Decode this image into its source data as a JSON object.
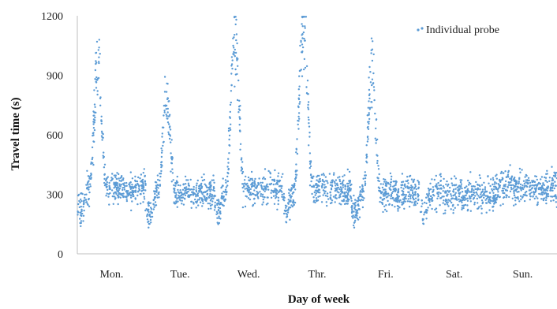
{
  "chart_data": {
    "type": "scatter",
    "title": "",
    "xlabel": "Day of week",
    "ylabel": "Travel time (s)",
    "ylim": [
      0,
      1200
    ],
    "yticks": [
      0,
      300,
      600,
      900,
      1200
    ],
    "categories": [
      "Mon.",
      "Tue.",
      "Wed.",
      "Thr.",
      "Fri.",
      "Sat.",
      "Sun."
    ],
    "xlim_days": [
      0,
      7
    ],
    "grid": false,
    "legend_position": "top-right",
    "series": [
      {
        "name": "Individual probe",
        "color": "#5b9bd5",
        "marker": "dot",
        "daily_profile": [
          {
            "day": "Mon.",
            "baseline": 330,
            "morning_low": 220,
            "peak": 940
          },
          {
            "day": "Tue.",
            "baseline": 310,
            "morning_low": 200,
            "peak": 780
          },
          {
            "day": "Wed.",
            "baseline": 330,
            "morning_low": 210,
            "peak": 1100
          },
          {
            "day": "Thr.",
            "baseline": 320,
            "morning_low": 220,
            "peak": 1190
          },
          {
            "day": "Fri.",
            "baseline": 310,
            "morning_low": 200,
            "peak": 890
          },
          {
            "day": "Sat.",
            "baseline": 300,
            "morning_low": 210,
            "peak": 330
          },
          {
            "day": "Sun.",
            "baseline": 330,
            "morning_low": 280,
            "peak": 360
          }
        ]
      }
    ]
  }
}
